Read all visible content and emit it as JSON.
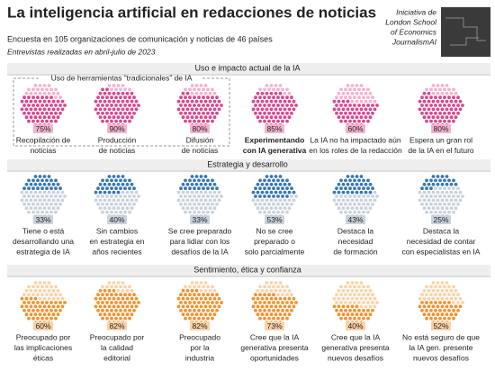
{
  "header": {
    "title": "La inteligencia artificial en redacciones de noticias",
    "subtitle": "Encuesta en 105 organizaciones de comunicación y noticias de 46 países",
    "note": "Entrevistas realizadas en abril-julio de 2023",
    "source": [
      "Iniciativa de",
      "London School",
      "of Economics",
      "JournalismAI"
    ]
  },
  "group_label": "Uso de herramientas “tradicionales” de IA",
  "sections": [
    {
      "title": "Uso e impacto actual de la IA",
      "color": "#d9478f",
      "light": "#f3b3cf",
      "fill_from": "bottom",
      "items": [
        {
          "value": 75,
          "value_label": "75%",
          "label": [
            "Recopilación de",
            "noticias"
          ]
        },
        {
          "value": 90,
          "value_label": "90%",
          "label": [
            "Producción",
            "de noticias"
          ]
        },
        {
          "value": 80,
          "value_label": "80%",
          "label": [
            "Difusión",
            "de noticias"
          ]
        },
        {
          "value": 85,
          "value_label": "85%",
          "label": [
            "Experimentando",
            "con IA generativa"
          ],
          "bold": true
        },
        {
          "value": 60,
          "value_label": "60%",
          "label": [
            "La IA no ha impactado aún",
            "en los roles de la redacción"
          ]
        },
        {
          "value": 80,
          "value_label": "80%",
          "label": [
            "Espera un gran rol",
            "de la IA en el futuro"
          ]
        }
      ]
    },
    {
      "title": "Estrategia y desarrollo",
      "color": "#3b78b0",
      "light": "#c9d2dc",
      "fill_from": "top",
      "items": [
        {
          "value": 33,
          "value_label": "33%",
          "label": [
            "Tiene o está",
            "desarrollando una",
            "estrategia de IA"
          ]
        },
        {
          "value": 40,
          "value_label": "40%",
          "label": [
            "Sin cambios",
            "en estrategia en",
            "años recientes"
          ]
        },
        {
          "value": 33,
          "value_label": "33%",
          "label": [
            "Se cree preparado",
            "para lidiar con los",
            "desafíos de la IA"
          ]
        },
        {
          "value": 53,
          "value_label": "53%",
          "label": [
            "No se cree",
            "preparado o",
            "solo parcialmente"
          ]
        },
        {
          "value": 43,
          "value_label": "43%",
          "label": [
            "Destaca la",
            "necesidad",
            "de formación"
          ]
        },
        {
          "value": 25,
          "value_label": "25%",
          "label": [
            "Destaca la",
            "necesidad de contar",
            "con especialistas en IA"
          ]
        }
      ]
    },
    {
      "title": "Sentimiento, ética y confianza",
      "color": "#f3922a",
      "light": "#f9d3a8",
      "fill_from": "bottom",
      "items": [
        {
          "value": 60,
          "value_label": "60%",
          "label": [
            "Preocupado por",
            "las implicaciones",
            "éticas"
          ]
        },
        {
          "value": 82,
          "value_label": "82%",
          "label": [
            "Preocupado por",
            "la calidad",
            "editorial"
          ]
        },
        {
          "value": 82,
          "value_label": "82%",
          "label": [
            "Preocupado",
            "por la",
            "industria"
          ]
        },
        {
          "value": 73,
          "value_label": "73%",
          "label": [
            "Cree que la IA",
            "generativa presenta",
            "oportunidades"
          ]
        },
        {
          "value": 40,
          "value_label": "40%",
          "label": [
            "Cree que la IA",
            "generativa presenta",
            "nuevos desafíos"
          ]
        },
        {
          "value": 52,
          "value_label": "52%",
          "label": [
            "No está seguro de que",
            "la IA gen. presente",
            "nuevos desafíos"
          ]
        }
      ]
    }
  ]
}
